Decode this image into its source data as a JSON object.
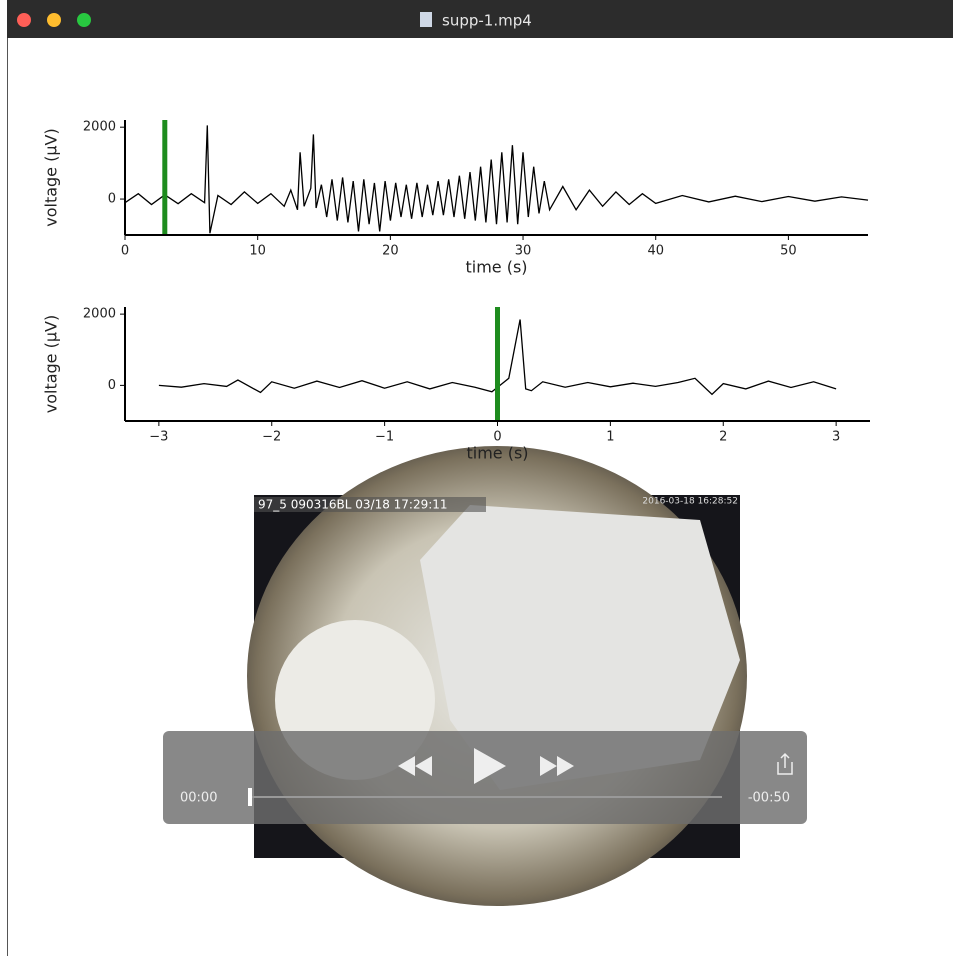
{
  "window": {
    "title": "supp-1.mp4"
  },
  "chart_data": [
    {
      "type": "line",
      "ylabel": "voltage (μV)",
      "xlabel": "time (s)",
      "color": "#000000",
      "marker_x": 3,
      "marker_color": "#1e8c1e",
      "xlim": [
        0,
        56
      ],
      "ylim": [
        -1000,
        2200
      ],
      "xticks": [
        0,
        10,
        20,
        30,
        40,
        50
      ],
      "yticks": [
        0,
        2000
      ],
      "x": [
        0,
        1,
        2,
        3,
        4,
        5,
        6,
        6.2,
        6.4,
        7,
        8,
        9,
        10,
        11,
        12,
        12.5,
        13,
        13.2,
        13.5,
        14,
        14.2,
        14.4,
        14.8,
        15.2,
        15.6,
        16,
        16.4,
        16.8,
        17.2,
        17.6,
        18,
        18.4,
        18.8,
        19.2,
        19.6,
        20,
        20.4,
        20.8,
        21.2,
        21.6,
        22,
        22.4,
        22.8,
        23.2,
        23.6,
        24,
        24.4,
        24.8,
        25.2,
        25.6,
        26,
        26.4,
        26.8,
        27.2,
        27.6,
        28,
        28.4,
        28.8,
        29.2,
        29.6,
        30,
        30.4,
        30.8,
        31.2,
        31.6,
        32,
        33,
        34,
        35,
        36,
        37,
        38,
        39,
        40,
        42,
        44,
        46,
        48,
        50,
        52,
        54,
        56
      ],
      "values": [
        -100,
        150,
        -150,
        120,
        -130,
        150,
        -100,
        2050,
        -950,
        100,
        -150,
        200,
        -120,
        150,
        -200,
        250,
        -300,
        1300,
        -200,
        300,
        1800,
        -250,
        400,
        -500,
        550,
        -600,
        600,
        -650,
        500,
        -900,
        550,
        -700,
        450,
        -900,
        500,
        -600,
        450,
        -500,
        400,
        -550,
        450,
        -500,
        400,
        -450,
        500,
        -450,
        550,
        -500,
        650,
        -550,
        750,
        -600,
        900,
        -650,
        1100,
        -700,
        1300,
        -650,
        1500,
        -700,
        1300,
        -500,
        900,
        -400,
        500,
        -300,
        350,
        -300,
        250,
        -200,
        200,
        -150,
        150,
        -120,
        100,
        -80,
        80,
        -70,
        70,
        -60,
        60,
        -30
      ]
    },
    {
      "type": "line",
      "ylabel": "voltage (μV)",
      "xlabel": "time (s)",
      "color": "#000000",
      "marker_x": 0,
      "marker_color": "#1e8c1e",
      "xlim": [
        -3.3,
        3.3
      ],
      "ylim": [
        -1000,
        2200
      ],
      "xticks": [
        {
          "value": -3,
          "label": "−3"
        },
        {
          "value": -2,
          "label": "−2"
        },
        {
          "value": -1,
          "label": "−1"
        },
        0,
        1,
        2,
        3
      ],
      "yticks": [
        0,
        2000
      ],
      "x": [
        -3,
        -2.8,
        -2.6,
        -2.4,
        -2.3,
        -2.1,
        -2,
        -1.8,
        -1.6,
        -1.4,
        -1.2,
        -1,
        -0.8,
        -0.6,
        -0.4,
        -0.2,
        -0.05,
        0.1,
        0.2,
        0.25,
        0.3,
        0.4,
        0.6,
        0.8,
        1,
        1.2,
        1.4,
        1.6,
        1.75,
        1.9,
        2,
        2.2,
        2.4,
        2.6,
        2.8,
        3
      ],
      "values": [
        0,
        -50,
        50,
        -30,
        150,
        -200,
        100,
        -80,
        120,
        -60,
        130,
        -80,
        100,
        -100,
        80,
        -50,
        -180,
        200,
        1850,
        -100,
        -150,
        100,
        -50,
        80,
        -40,
        60,
        -30,
        80,
        200,
        -250,
        50,
        -100,
        120,
        -60,
        100,
        -100
      ]
    }
  ],
  "video": {
    "overlay_left": "97_5 090316BL 03/18 17:29:11",
    "overlay_right": "2016-03-18 16:28:52",
    "current_time": "00:00",
    "remaining_time": "-00:50"
  }
}
